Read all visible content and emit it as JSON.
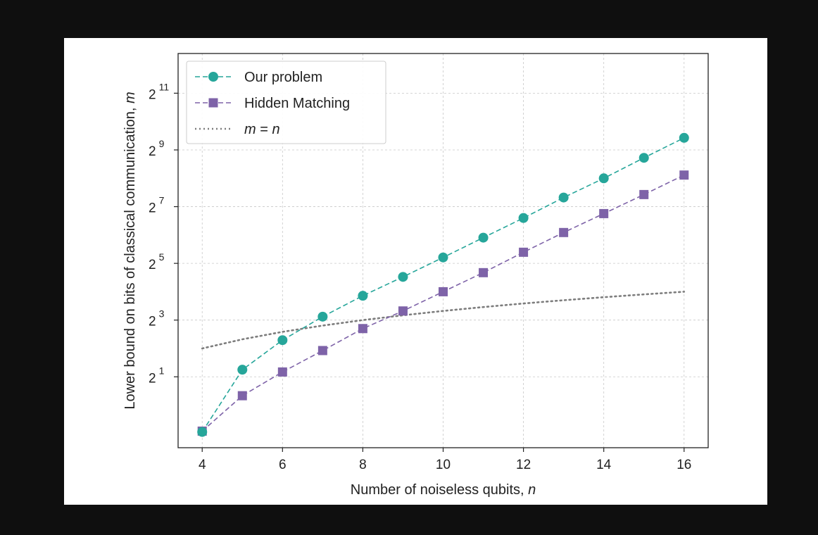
{
  "chart_data": {
    "type": "line",
    "xlabel": "Number of noiseless qubits, ",
    "xlabel_var": "n",
    "ylabel": "Lower bound on bits of classical communication, ",
    "ylabel_var": "m",
    "xlim": [
      3.4,
      16.6
    ],
    "ylim_log2": [
      -1.5,
      12.4
    ],
    "y_scale": "log2",
    "x_ticks": [
      4,
      6,
      8,
      10,
      12,
      14,
      16
    ],
    "y_ticks": [
      {
        "base": "2",
        "exp": "1"
      },
      {
        "base": "2",
        "exp": "3"
      },
      {
        "base": "2",
        "exp": "5"
      },
      {
        "base": "2",
        "exp": "7"
      },
      {
        "base": "2",
        "exp": "9"
      },
      {
        "base": "2",
        "exp": "11"
      }
    ],
    "grid": true,
    "legend_position": "top-left",
    "x": [
      4,
      5,
      6,
      7,
      8,
      9,
      10,
      11,
      12,
      13,
      14,
      15,
      16
    ],
    "series": [
      {
        "name": "Our problem",
        "marker": "circle",
        "line": "dashed",
        "color": "#26a69a",
        "values": [
          0.52,
          2.38,
          4.9,
          8.7,
          14.5,
          23.0,
          37.0,
          60.0,
          97.0,
          160.0,
          256.0,
          422.0,
          688.0
        ]
      },
      {
        "name": "Hidden Matching",
        "marker": "square",
        "line": "dashed",
        "color": "#7e63a8",
        "values": [
          0.53,
          1.26,
          2.25,
          3.8,
          6.5,
          10.0,
          16.0,
          25.5,
          42.0,
          68.0,
          108.0,
          172.0,
          277.0
        ]
      },
      {
        "name_prefix": "m",
        "name_eq": " = ",
        "name_suffix": "n",
        "marker": "none",
        "line": "dotted",
        "color": "#7d7d7d",
        "values": [
          4,
          5,
          6,
          7,
          8,
          9,
          10,
          11,
          12,
          13,
          14,
          15,
          16
        ]
      }
    ]
  }
}
